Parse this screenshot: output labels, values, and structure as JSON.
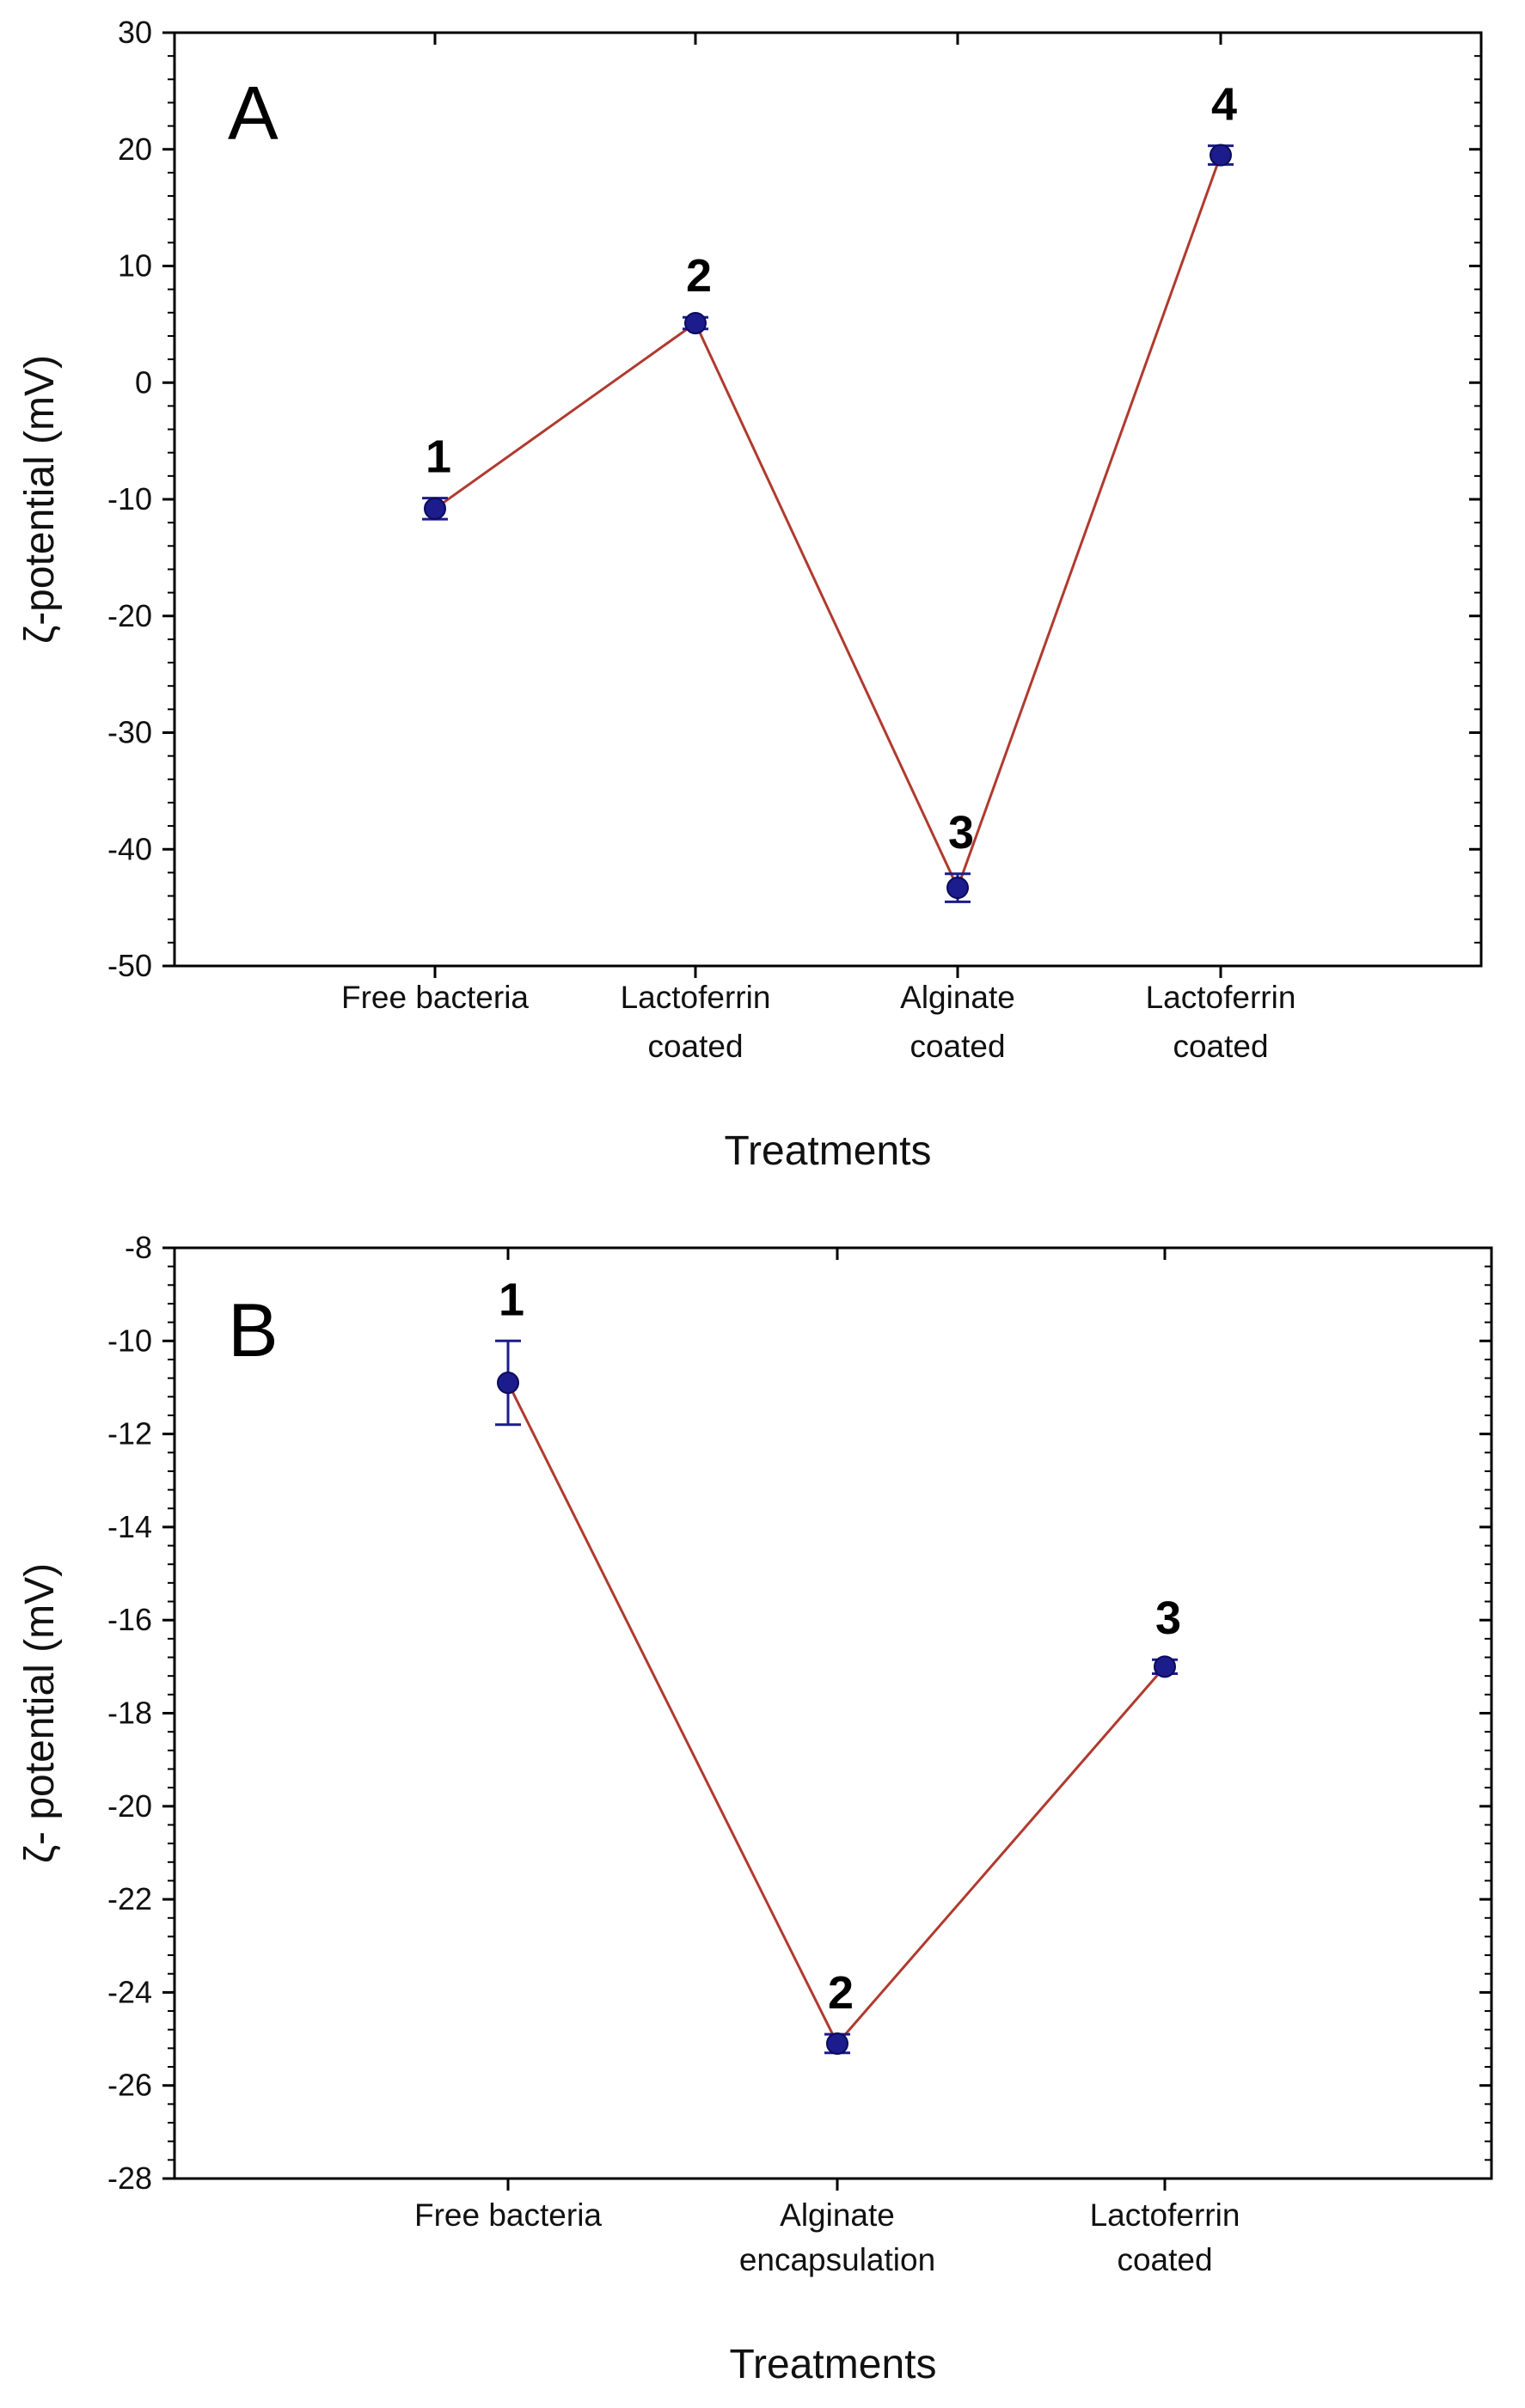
{
  "chart_data": [
    {
      "type": "line",
      "panel_label": "A",
      "xlabel": "Treatments",
      "ylabel": "ζ-potential (mV)",
      "ylim": [
        -50,
        30
      ],
      "yticks": [
        30,
        20,
        10,
        0,
        -10,
        -20,
        -30,
        -40,
        -50
      ],
      "categories": [
        [
          "Free bacteria"
        ],
        [
          "Lactoferrin",
          "coated"
        ],
        [
          "Alginate",
          "coated"
        ],
        [
          "Lactoferrin",
          "coated"
        ]
      ],
      "values": [
        -10.8,
        5.1,
        -43.3,
        19.5
      ],
      "errors": [
        0.9,
        0.5,
        1.2,
        0.8
      ],
      "point_labels": [
        "1",
        "2",
        "3",
        "4"
      ],
      "line_color": "#b03a2e",
      "marker_color": "#1c1c8c",
      "errorbar_color": "#1c1c8c"
    },
    {
      "type": "line",
      "panel_label": "B",
      "xlabel": "Treatments",
      "ylabel": "ζ- potential (mV)",
      "ylim": [
        -28,
        -8
      ],
      "yticks": [
        -8,
        -10,
        -12,
        -14,
        -16,
        -18,
        -20,
        -22,
        -24,
        -26,
        -28
      ],
      "categories": [
        [
          "Free bacteria"
        ],
        [
          "Alginate",
          "encapsulation"
        ],
        [
          "Lactoferrin",
          "coated"
        ]
      ],
      "values": [
        -10.9,
        -25.1,
        -17.0
      ],
      "errors": [
        0.9,
        0.2,
        0.15
      ],
      "point_labels": [
        "1",
        "2",
        "3"
      ],
      "line_color": "#b03a2e",
      "marker_color": "#1c1c8c",
      "errorbar_color": "#1c1c8c"
    }
  ]
}
